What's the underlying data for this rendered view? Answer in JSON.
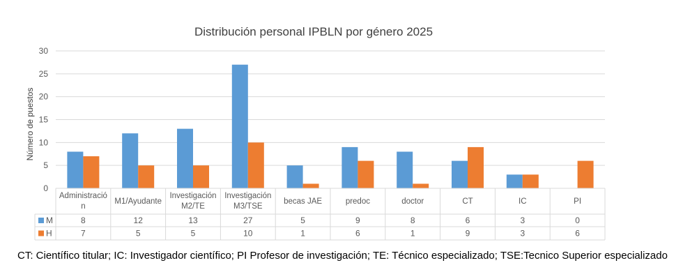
{
  "colors": {
    "M": "#5b9bd5",
    "H": "#ed7d31",
    "grid": "#d9d9d9",
    "text": "#595959"
  },
  "chart_data": {
    "type": "bar",
    "title": "Distribución personal IPBLN por género 2025",
    "xlabel": "",
    "ylabel": "Número de puestos",
    "ylim": [
      0,
      30
    ],
    "yticks": [
      0,
      5,
      10,
      15,
      20,
      25,
      30
    ],
    "grid": true,
    "legend": "data-table",
    "categories": [
      [
        "Administració",
        "n"
      ],
      [
        "M1/Ayudante"
      ],
      [
        "Investigación",
        "M2/TE"
      ],
      [
        "Investigación",
        "M3/TSE"
      ],
      [
        "becas JAE"
      ],
      [
        "predoc"
      ],
      [
        "doctor"
      ],
      [
        "CT"
      ],
      [
        "IC"
      ],
      [
        "PI"
      ]
    ],
    "series": [
      {
        "name": "M",
        "values": [
          8,
          12,
          13,
          27,
          5,
          9,
          8,
          6,
          3,
          0
        ]
      },
      {
        "name": "H",
        "values": [
          7,
          5,
          5,
          10,
          1,
          6,
          1,
          9,
          3,
          6
        ]
      }
    ]
  },
  "footnote": "CT: Científico titular; IC: Investigador científico; PI Profesor de investigación; TE: Técnico especializado; TSE:Tecnico Superior especializado"
}
